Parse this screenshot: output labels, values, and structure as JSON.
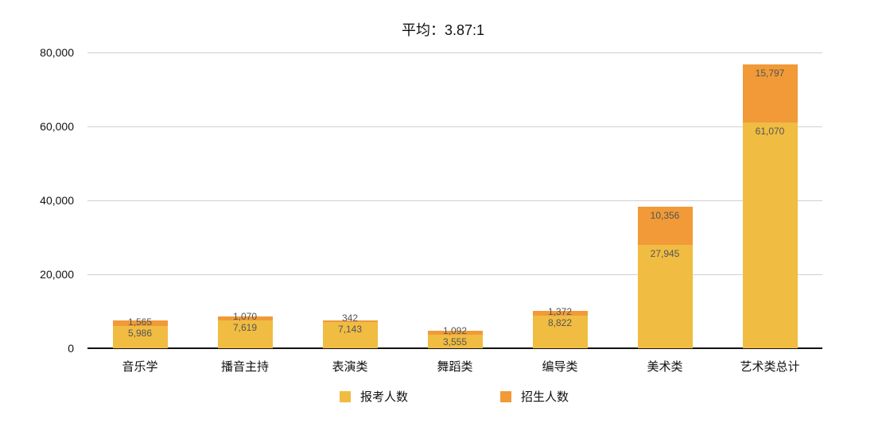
{
  "chart_data": {
    "type": "bar",
    "stacked": true,
    "title": "平均：3.87:1",
    "xlabel": "",
    "ylabel": "",
    "ylim": [
      0,
      80000
    ],
    "yticks": [
      "0",
      "20,000",
      "40,000",
      "60,000",
      "80,000"
    ],
    "grid": true,
    "legend_position": "bottom",
    "categories": [
      "音乐学",
      "播音主持",
      "表演类",
      "舞蹈类",
      "编导类",
      "美术类",
      "艺术类总计"
    ],
    "series": [
      {
        "name": "报考人数",
        "color": "#f0bc42",
        "values": [
          5986,
          7619,
          7143,
          3555,
          8822,
          27945,
          61070
        ],
        "labels": [
          "5,986",
          "7,619",
          "7,143",
          "3,555",
          "8,822",
          "27,945",
          "61,070"
        ]
      },
      {
        "name": "招生人数",
        "color": "#f19a37",
        "values": [
          1565,
          1070,
          342,
          1092,
          1372,
          10356,
          15797
        ],
        "labels": [
          "1,565",
          "1,070",
          "342",
          "1,092",
          "1,372",
          "10,356",
          "15,797"
        ]
      }
    ]
  }
}
